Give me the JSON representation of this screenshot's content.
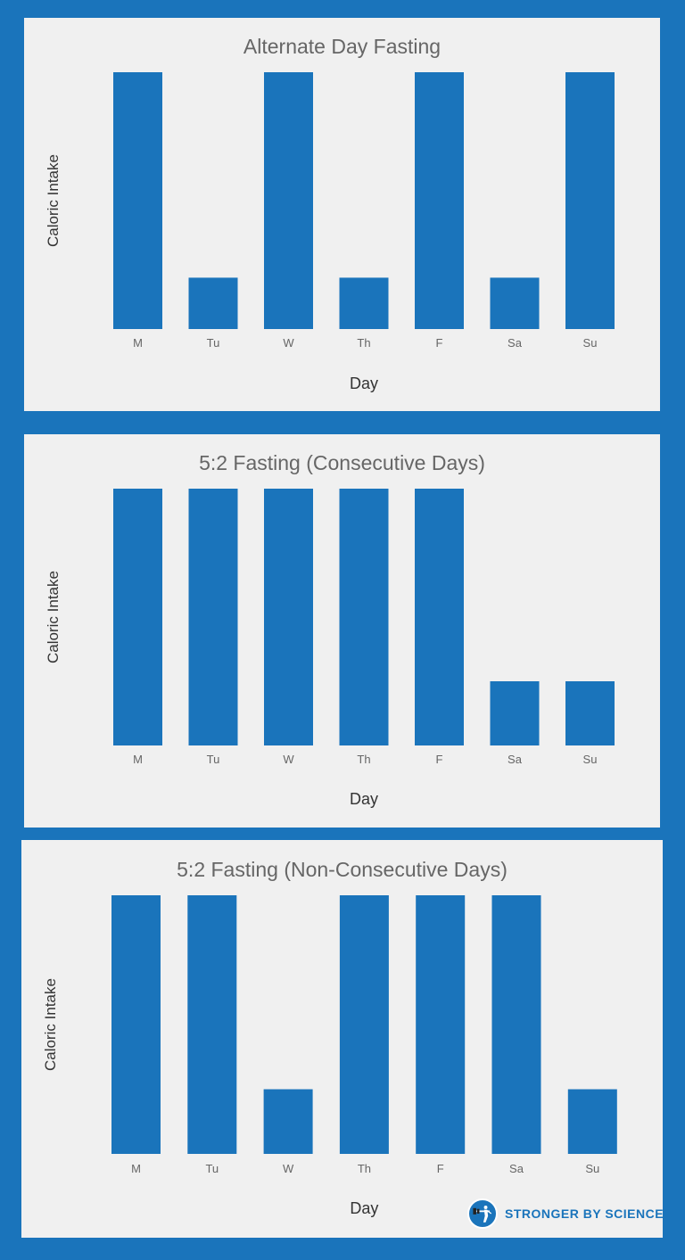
{
  "chart_data": [
    {
      "type": "bar",
      "title": "Alternate Day Fasting",
      "xlabel": "Day",
      "ylabel": "Caloric Intake",
      "categories": [
        "M",
        "Tu",
        "W",
        "Th",
        "F",
        "Sa",
        "Su"
      ],
      "values": [
        100,
        20,
        100,
        20,
        100,
        20,
        100
      ],
      "ylim": [
        0,
        100
      ],
      "grid": false,
      "color": "#1a74bb"
    },
    {
      "type": "bar",
      "title": "5:2 Fasting (Consecutive Days)",
      "xlabel": "Day",
      "ylabel": "Caloric Intake",
      "categories": [
        "M",
        "Tu",
        "W",
        "Th",
        "F",
        "Sa",
        "Su"
      ],
      "values": [
        100,
        100,
        100,
        100,
        100,
        25,
        25
      ],
      "ylim": [
        0,
        100
      ],
      "grid": false,
      "color": "#1a74bb"
    },
    {
      "type": "bar",
      "title": "5:2 Fasting (Non-Consecutive Days)",
      "xlabel": "Day",
      "ylabel": "Caloric Intake",
      "categories": [
        "M",
        "Tu",
        "W",
        "Th",
        "F",
        "Sa",
        "Su"
      ],
      "values": [
        100,
        100,
        25,
        100,
        100,
        100,
        25
      ],
      "ylim": [
        0,
        100
      ],
      "grid": false,
      "color": "#1a74bb"
    }
  ],
  "branding": {
    "logo_text_strong": "STRONGER",
    "logo_text_by": "BY",
    "logo_text_science": "SCIENCE",
    "logo_icon": "barbell-lifter-icon"
  },
  "colors": {
    "background": "#1a74bb",
    "panel": "#f0f0f0",
    "bar": "#1a74bb"
  }
}
